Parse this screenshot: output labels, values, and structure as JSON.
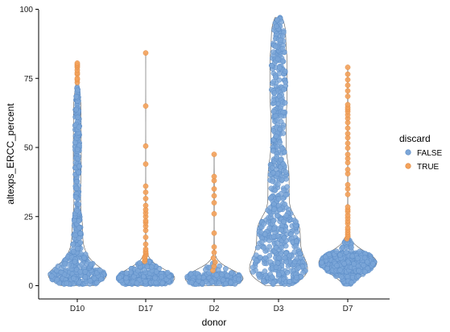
{
  "chart_data": {
    "type": "scatter",
    "subtype": "violin-beeswarm",
    "xlabel": "donor",
    "ylabel": "altexps_ERCC_percent",
    "categories": [
      "D10",
      "D17",
      "D2",
      "D3",
      "D7"
    ],
    "ylim": [
      0,
      100
    ],
    "yticks": [
      0,
      25,
      50,
      75,
      100
    ],
    "grid": false,
    "legend": {
      "title": "discard",
      "placement": "right",
      "entries": [
        {
          "label": "FALSE",
          "color": "#7ba6d8"
        },
        {
          "label": "TRUE",
          "color": "#f4a25b"
        }
      ]
    },
    "colors": {
      "FALSE": "#7ba6d8",
      "TRUE": "#f4a25b",
      "violin_outline": "#555555"
    },
    "groups": [
      {
        "donor": "D10",
        "range": [
          0,
          80.5
        ],
        "false_bands": [
          [
            0.5,
            6,
            220
          ],
          [
            6,
            12,
            70
          ],
          [
            12,
            25,
            70
          ],
          [
            25,
            40,
            50
          ],
          [
            40,
            55,
            60
          ],
          [
            55,
            68,
            50
          ],
          [
            68,
            73,
            12
          ]
        ],
        "true_values": [
          73.5,
          74.5,
          75,
          76.5,
          77,
          78,
          79,
          79.5,
          80,
          80.5
        ]
      },
      {
        "donor": "D17",
        "range": [
          0,
          84.2
        ],
        "false_bands": [
          [
            0.5,
            4.5,
            330
          ],
          [
            4.5,
            9,
            50
          ]
        ],
        "true_values": [
          8.8,
          9.5,
          10.2,
          10.8,
          11.3,
          11.9,
          12.4,
          13.2,
          15,
          17.5,
          20,
          21.5,
          22.8,
          23.5,
          25,
          26.3,
          27.5,
          29,
          31.5,
          33.8,
          36,
          44,
          50.5,
          65,
          84.2
        ]
      },
      {
        "donor": "D2",
        "range": [
          0,
          47.5
        ],
        "false_bands": [
          [
            0.5,
            4.5,
            180
          ],
          [
            4.5,
            8.5,
            12
          ]
        ],
        "true_values": [
          5.5,
          7,
          8.5,
          10,
          12,
          14,
          19,
          26,
          30,
          32.5,
          35,
          38,
          39.5,
          47.5
        ]
      },
      {
        "donor": "D3",
        "range": [
          0,
          97
        ],
        "false_bands": [
          [
            0.5,
            10,
            150
          ],
          [
            10,
            25,
            170
          ],
          [
            25,
            45,
            110
          ],
          [
            45,
            65,
            80
          ],
          [
            65,
            85,
            90
          ],
          [
            85,
            97,
            45
          ]
        ],
        "true_values": []
      },
      {
        "donor": "D7",
        "range": [
          0,
          79
        ],
        "false_bands": [
          [
            0.5,
            5,
            60
          ],
          [
            5,
            12,
            500
          ],
          [
            12,
            17,
            30
          ]
        ],
        "true_values": [
          17,
          17.8,
          18.5,
          19.3,
          20.2,
          21,
          22.5,
          23.4,
          24.5,
          25.5,
          26.8,
          27.5,
          28.5,
          33,
          35,
          36.5,
          40.5,
          42,
          44.5,
          46,
          47.5,
          49.8,
          51.5,
          53.5,
          55,
          57,
          59,
          60.5,
          61.8,
          63,
          63.8,
          64.5,
          65.5,
          68.5,
          70.5,
          72.5,
          74.5,
          76.5,
          79
        ]
      }
    ]
  }
}
